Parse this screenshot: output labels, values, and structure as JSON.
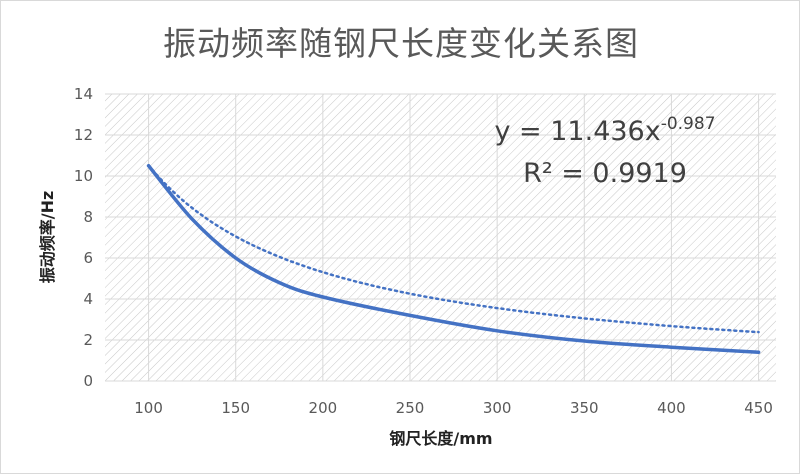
{
  "chart_data": {
    "type": "line",
    "title": "振动频率随钢尺长度变化关系图",
    "xlabel": "钢尺长度/mm",
    "ylabel": "振动频率/Hz",
    "xlim": [
      75,
      460
    ],
    "ylim": [
      0,
      14
    ],
    "x_ticks": [
      100,
      150,
      200,
      250,
      300,
      350,
      400,
      450
    ],
    "y_ticks": [
      0,
      2,
      4,
      6,
      8,
      10,
      12,
      14
    ],
    "grid": true,
    "series": [
      {
        "style": "solid",
        "color": "#4472c4",
        "x": [
          100,
          125,
          150,
          175,
          200,
          250,
          300,
          350,
          400,
          450
        ],
        "y": [
          10.5,
          7.9,
          6.0,
          4.8,
          4.1,
          3.2,
          2.45,
          1.95,
          1.65,
          1.4
        ]
      },
      {
        "style": "dotted",
        "color": "#4472c4",
        "trendline": "power",
        "coefficient": 11.436,
        "exponent": -0.987
      }
    ],
    "annotations": {
      "equation_base": "y = 11.436x",
      "equation_exponent": "-0.987",
      "r_squared": "R² = 0.9919"
    }
  }
}
